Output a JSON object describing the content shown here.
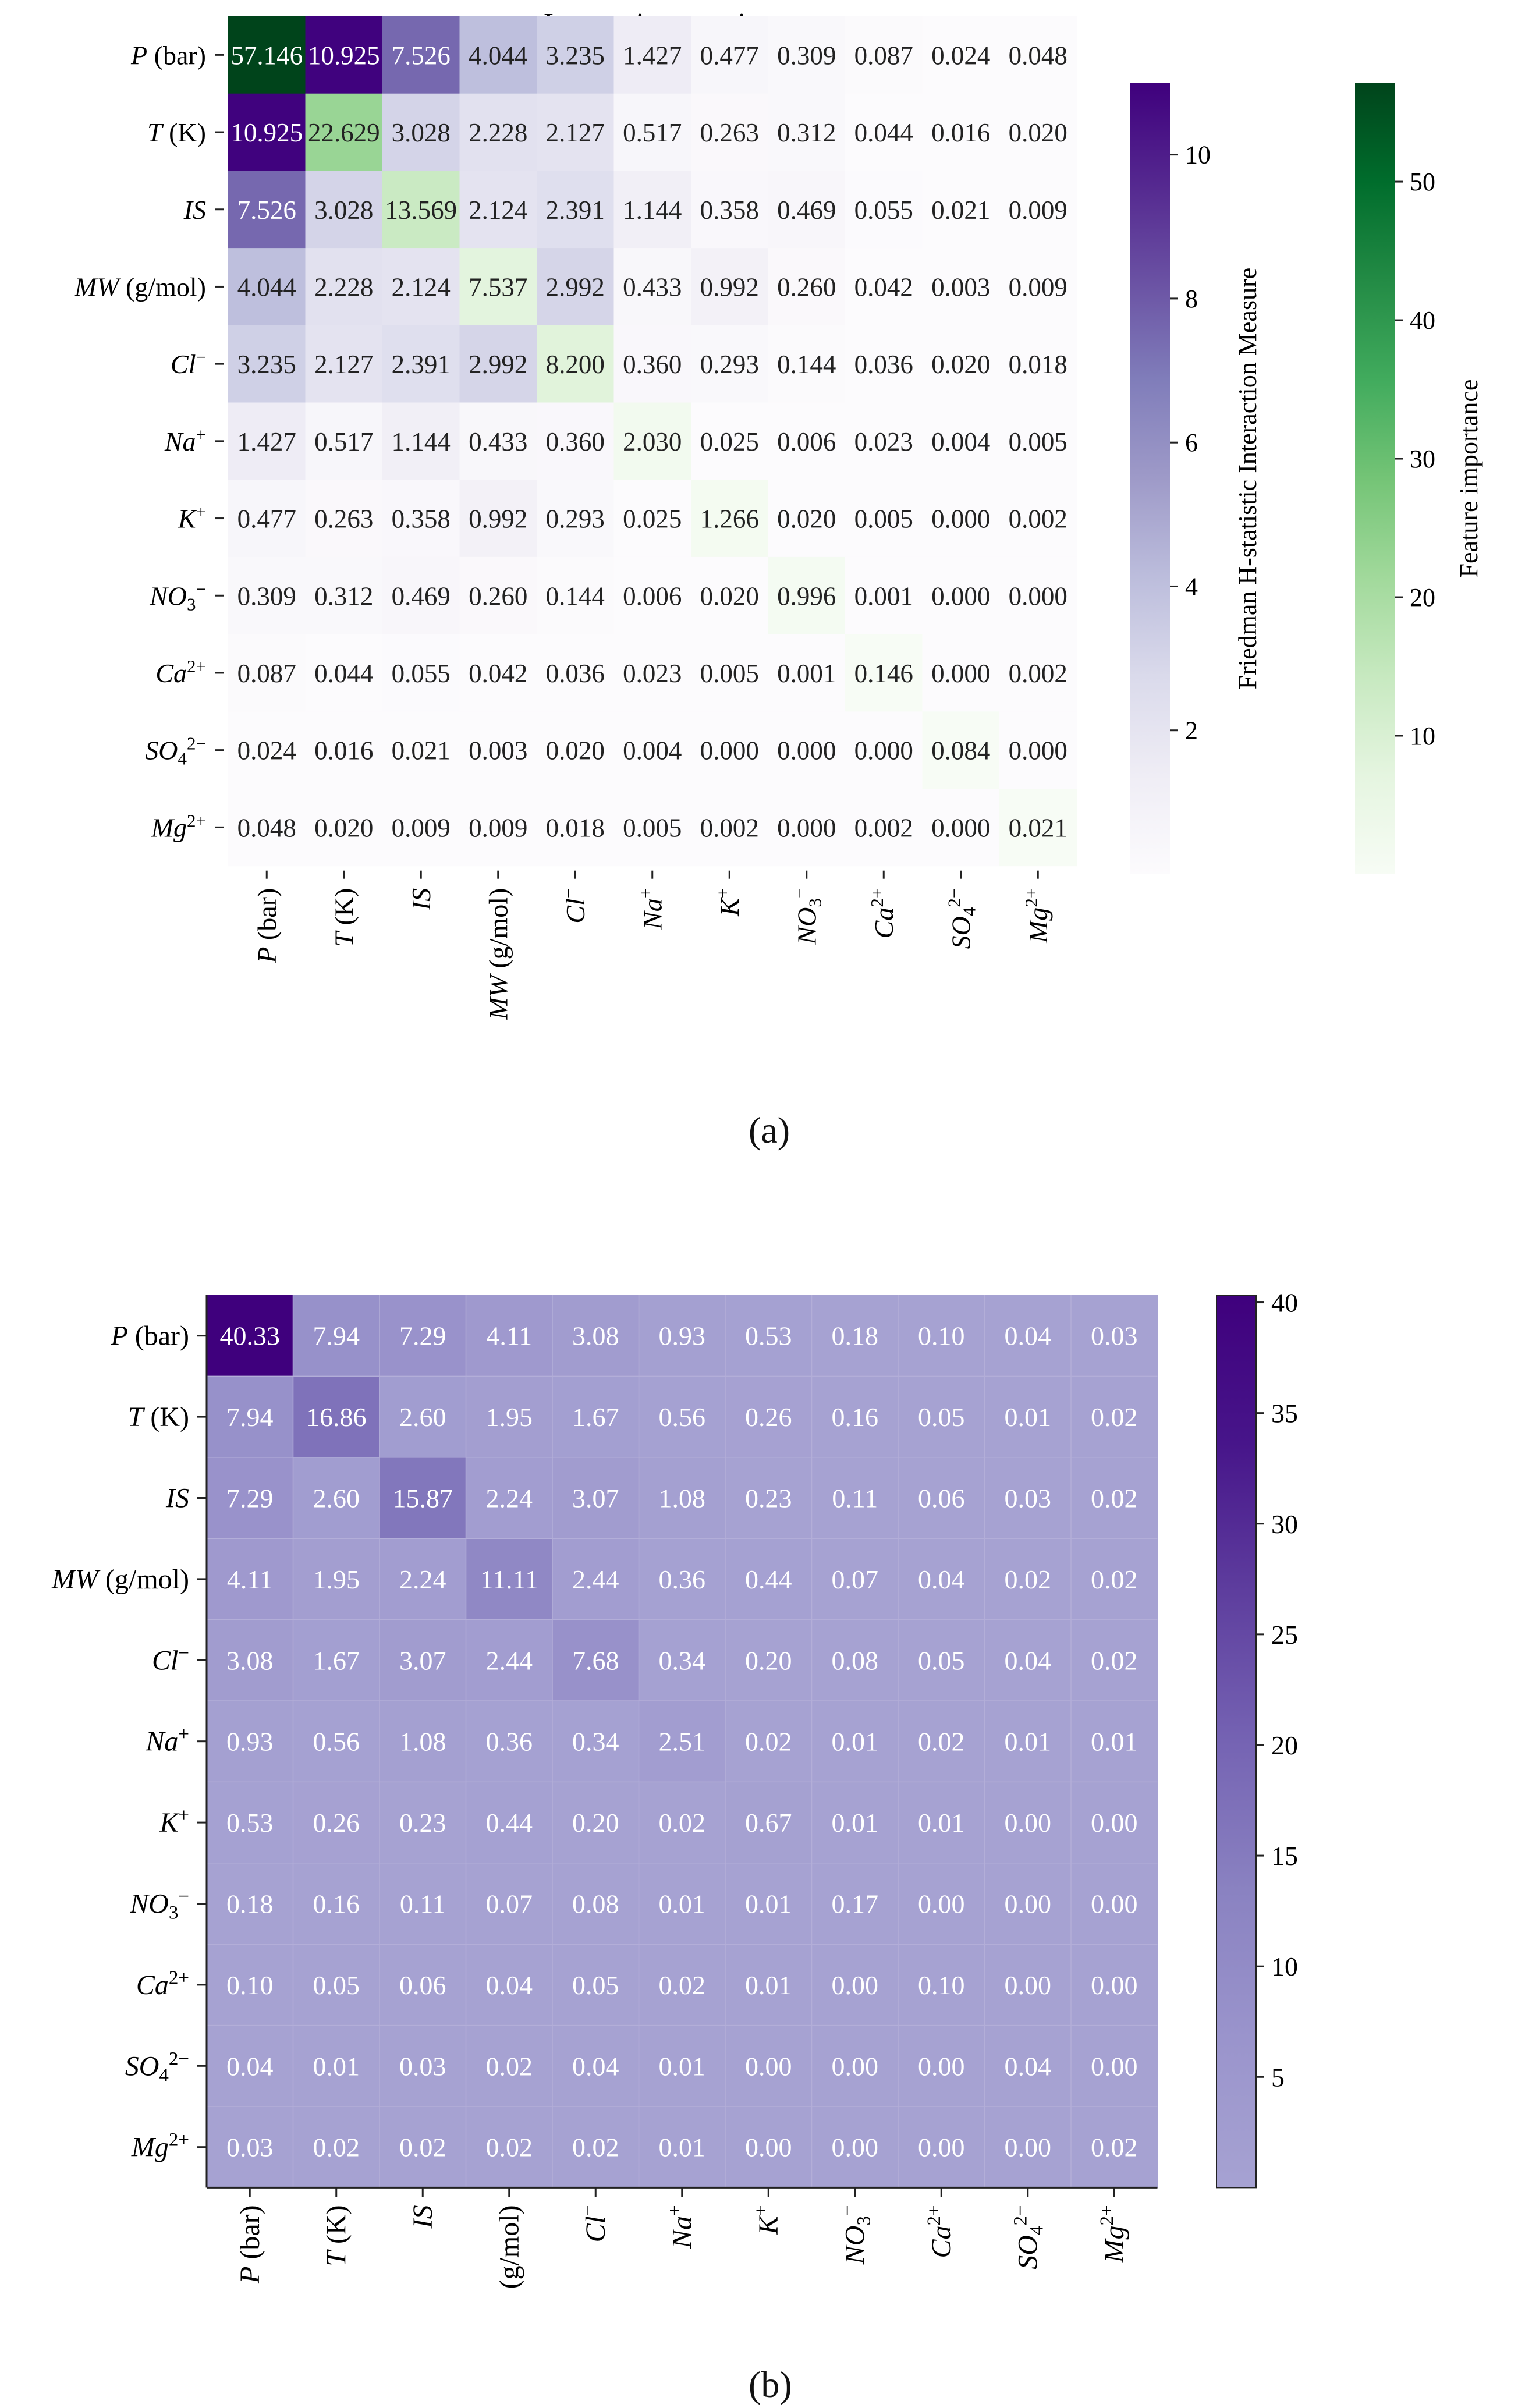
{
  "figure": {
    "panel_a_label": "(a)",
    "panel_b_label": "(b)"
  },
  "colors": {
    "purple_dark": "#3f007d",
    "green_dark": "#00441b",
    "purple_light": "#fcfbfd",
    "green_light": "#f7fcf5"
  },
  "chart_data": [
    {
      "type": "heatmap",
      "id": "a",
      "title": "Interaction matrix",
      "rows": [
        "P (bar)",
        "T (K)",
        "IS",
        "MW (g/mol)",
        "Cl⁻",
        "Na⁺",
        "K⁺",
        "NO₃⁻",
        "Ca²⁺",
        "SO₄²⁻",
        "Mg²⁺"
      ],
      "cols": [
        "P (bar)",
        "T (K)",
        "IS",
        "MW (g/mol)",
        "Cl⁻",
        "Na⁺",
        "K⁺",
        "NO₃⁻",
        "Ca²⁺",
        "SO₄²⁻",
        "Mg²⁺"
      ],
      "values": [
        [
          "57.146",
          "10.925",
          "7.526",
          "4.044",
          "3.235",
          "1.427",
          "0.477",
          "0.309",
          "0.087",
          "0.024",
          "0.048"
        ],
        [
          "10.925",
          "22.629",
          "3.028",
          "2.228",
          "2.127",
          "0.517",
          "0.263",
          "0.312",
          "0.044",
          "0.016",
          "0.020"
        ],
        [
          "7.526",
          "3.028",
          "13.569",
          "2.124",
          "2.391",
          "1.144",
          "0.358",
          "0.469",
          "0.055",
          "0.021",
          "0.009"
        ],
        [
          "4.044",
          "2.228",
          "2.124",
          "7.537",
          "2.992",
          "0.433",
          "0.992",
          "0.260",
          "0.042",
          "0.003",
          "0.009"
        ],
        [
          "3.235",
          "2.127",
          "2.391",
          "2.992",
          "8.200",
          "0.360",
          "0.293",
          "0.144",
          "0.036",
          "0.020",
          "0.018"
        ],
        [
          "1.427",
          "0.517",
          "1.144",
          "0.433",
          "0.360",
          "2.030",
          "0.025",
          "0.006",
          "0.023",
          "0.004",
          "0.005"
        ],
        [
          "0.477",
          "0.263",
          "0.358",
          "0.992",
          "0.293",
          "0.025",
          "1.266",
          "0.020",
          "0.005",
          "0.000",
          "0.002"
        ],
        [
          "0.309",
          "0.312",
          "0.469",
          "0.260",
          "0.144",
          "0.006",
          "0.020",
          "0.996",
          "0.001",
          "0.000",
          "0.000"
        ],
        [
          "0.087",
          "0.044",
          "0.055",
          "0.042",
          "0.036",
          "0.023",
          "0.005",
          "0.001",
          "0.146",
          "0.000",
          "0.002"
        ],
        [
          "0.024",
          "0.016",
          "0.021",
          "0.003",
          "0.020",
          "0.004",
          "0.000",
          "0.000",
          "0.000",
          "0.084",
          "0.000"
        ],
        [
          "0.048",
          "0.020",
          "0.009",
          "0.009",
          "0.018",
          "0.005",
          "0.002",
          "0.000",
          "0.002",
          "0.000",
          "0.021"
        ]
      ],
      "diagonal_colormap": "Greens",
      "offdiagonal_colormap": "Purples",
      "colorbars": [
        {
          "label": "Friedman H-statistic Interaction Measure",
          "range": [
            0,
            11
          ],
          "ticks": [
            2,
            4,
            6,
            8,
            10
          ],
          "colormap": "Purples"
        },
        {
          "label": "Feature importance",
          "range": [
            0,
            57.146
          ],
          "ticks": [
            10,
            20,
            30,
            40,
            50
          ],
          "colormap": "Greens"
        }
      ]
    },
    {
      "type": "heatmap",
      "id": "b",
      "title": "",
      "rows": [
        "P (bar)",
        "T (K)",
        "IS",
        "MW (g/mol)",
        "Cl⁻",
        "Na⁺",
        "K⁺",
        "NO₃⁻",
        "Ca²⁺",
        "SO₄²⁻",
        "Mg²⁺"
      ],
      "cols": [
        "P (bar)",
        "T (K)",
        "IS",
        "(g/mol)",
        "Cl⁻",
        "Na⁺",
        "K⁺",
        "NO₃⁻",
        "Ca²⁺",
        "SO₄²⁻",
        "Mg²⁺"
      ],
      "values": [
        [
          "40.33",
          "7.94",
          "7.29",
          "4.11",
          "3.08",
          "0.93",
          "0.53",
          "0.18",
          "0.10",
          "0.04",
          "0.03"
        ],
        [
          "7.94",
          "16.86",
          "2.60",
          "1.95",
          "1.67",
          "0.56",
          "0.26",
          "0.16",
          "0.05",
          "0.01",
          "0.02"
        ],
        [
          "7.29",
          "2.60",
          "15.87",
          "2.24",
          "3.07",
          "1.08",
          "0.23",
          "0.11",
          "0.06",
          "0.03",
          "0.02"
        ],
        [
          "4.11",
          "1.95",
          "2.24",
          "11.11",
          "2.44",
          "0.36",
          "0.44",
          "0.07",
          "0.04",
          "0.02",
          "0.02"
        ],
        [
          "3.08",
          "1.67",
          "3.07",
          "2.44",
          "7.68",
          "0.34",
          "0.20",
          "0.08",
          "0.05",
          "0.04",
          "0.02"
        ],
        [
          "0.93",
          "0.56",
          "1.08",
          "0.36",
          "0.34",
          "2.51",
          "0.02",
          "0.01",
          "0.02",
          "0.01",
          "0.01"
        ],
        [
          "0.53",
          "0.26",
          "0.23",
          "0.44",
          "0.20",
          "0.02",
          "0.67",
          "0.01",
          "0.01",
          "0.00",
          "0.00"
        ],
        [
          "0.18",
          "0.16",
          "0.11",
          "0.07",
          "0.08",
          "0.01",
          "0.01",
          "0.17",
          "0.00",
          "0.00",
          "0.00"
        ],
        [
          "0.10",
          "0.05",
          "0.06",
          "0.04",
          "0.05",
          "0.02",
          "0.01",
          "0.00",
          "0.10",
          "0.00",
          "0.00"
        ],
        [
          "0.04",
          "0.01",
          "0.03",
          "0.02",
          "0.04",
          "0.01",
          "0.00",
          "0.00",
          "0.00",
          "0.04",
          "0.00"
        ],
        [
          "0.03",
          "0.02",
          "0.02",
          "0.02",
          "0.02",
          "0.01",
          "0.00",
          "0.00",
          "0.00",
          "0.00",
          "0.02"
        ]
      ],
      "colormap": "Purples",
      "colorbars": [
        {
          "label": "",
          "range": [
            0,
            40.33
          ],
          "ticks": [
            5,
            10,
            15,
            20,
            25,
            30,
            35,
            40
          ],
          "colormap": "Purples"
        }
      ]
    }
  ]
}
